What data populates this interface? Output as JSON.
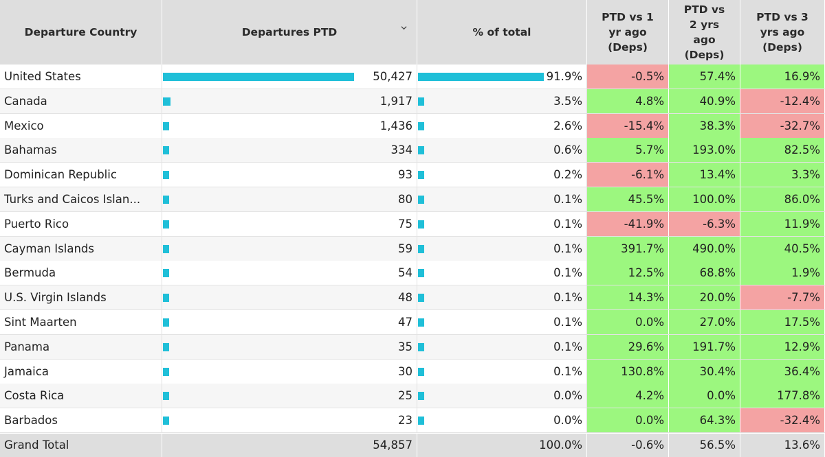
{
  "table": {
    "headers": [
      "Departure Country",
      "Departures PTD",
      "% of total",
      "PTD vs 1\nyr ago\n(Deps)",
      "PTD vs\n2 yrs\nago\n(Deps)",
      "PTD vs 3\nyrs ago\n(Deps)"
    ],
    "sort_icon": "chevron-down-icon",
    "bar_color": "#1fbfd8",
    "positive_color": "#9cf77f",
    "negative_color": "#f4a3a3",
    "rows": [
      {
        "country": "United States",
        "departures": "50,427",
        "dep_value": 50427,
        "pct": "91.9%",
        "pct_value": 91.9,
        "vs1": "-0.5%",
        "vs2": "57.4%",
        "vs3": "16.9%"
      },
      {
        "country": "Canada",
        "departures": "1,917",
        "dep_value": 1917,
        "pct": "3.5%",
        "pct_value": 3.5,
        "vs1": "4.8%",
        "vs2": "40.9%",
        "vs3": "-12.4%"
      },
      {
        "country": "Mexico",
        "departures": "1,436",
        "dep_value": 1436,
        "pct": "2.6%",
        "pct_value": 2.6,
        "vs1": "-15.4%",
        "vs2": "38.3%",
        "vs3": "-32.7%"
      },
      {
        "country": "Bahamas",
        "departures": "334",
        "dep_value": 334,
        "pct": "0.6%",
        "pct_value": 0.6,
        "vs1": "5.7%",
        "vs2": "193.0%",
        "vs3": "82.5%"
      },
      {
        "country": "Dominican Republic",
        "departures": "93",
        "dep_value": 93,
        "pct": "0.2%",
        "pct_value": 0.2,
        "vs1": "-6.1%",
        "vs2": "13.4%",
        "vs3": "3.3%"
      },
      {
        "country": "Turks and Caicos Islan...",
        "departures": "80",
        "dep_value": 80,
        "pct": "0.1%",
        "pct_value": 0.1,
        "vs1": "45.5%",
        "vs2": "100.0%",
        "vs3": "86.0%"
      },
      {
        "country": "Puerto Rico",
        "departures": "75",
        "dep_value": 75,
        "pct": "0.1%",
        "pct_value": 0.1,
        "vs1": "-41.9%",
        "vs2": "-6.3%",
        "vs3": "11.9%"
      },
      {
        "country": "Cayman Islands",
        "departures": "59",
        "dep_value": 59,
        "pct": "0.1%",
        "pct_value": 0.1,
        "vs1": "391.7%",
        "vs2": "490.0%",
        "vs3": "40.5%"
      },
      {
        "country": "Bermuda",
        "departures": "54",
        "dep_value": 54,
        "pct": "0.1%",
        "pct_value": 0.1,
        "vs1": "12.5%",
        "vs2": "68.8%",
        "vs3": "1.9%"
      },
      {
        "country": "U.S. Virgin Islands",
        "departures": "48",
        "dep_value": 48,
        "pct": "0.1%",
        "pct_value": 0.1,
        "vs1": "14.3%",
        "vs2": "20.0%",
        "vs3": "-7.7%"
      },
      {
        "country": "Sint Maarten",
        "departures": "47",
        "dep_value": 47,
        "pct": "0.1%",
        "pct_value": 0.1,
        "vs1": "0.0%",
        "vs2": "27.0%",
        "vs3": "17.5%"
      },
      {
        "country": "Panama",
        "departures": "35",
        "dep_value": 35,
        "pct": "0.1%",
        "pct_value": 0.1,
        "vs1": "29.6%",
        "vs2": "191.7%",
        "vs3": "12.9%"
      },
      {
        "country": "Jamaica",
        "departures": "30",
        "dep_value": 30,
        "pct": "0.1%",
        "pct_value": 0.1,
        "vs1": "130.8%",
        "vs2": "30.4%",
        "vs3": "36.4%"
      },
      {
        "country": "Costa Rica",
        "departures": "25",
        "dep_value": 25,
        "pct": "0.0%",
        "pct_value": 0.0,
        "vs1": "4.2%",
        "vs2": "0.0%",
        "vs3": "177.8%"
      },
      {
        "country": "Barbados",
        "departures": "23",
        "dep_value": 23,
        "pct": "0.0%",
        "pct_value": 0.0,
        "vs1": "0.0%",
        "vs2": "64.3%",
        "vs3": "-32.4%"
      }
    ],
    "total": {
      "label": "Grand Total",
      "departures": "54,857",
      "pct": "100.0%",
      "vs1": "-0.6%",
      "vs2": "56.5%",
      "vs3": "13.6%"
    }
  }
}
